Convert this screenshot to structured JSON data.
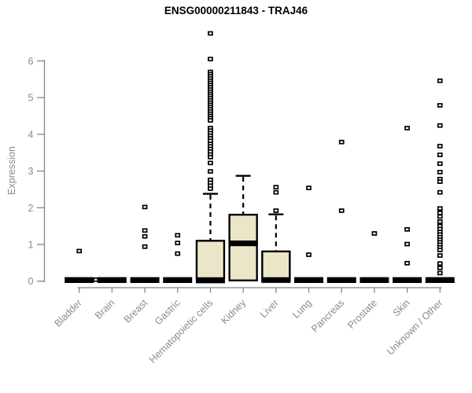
{
  "title": "ENSG00000211843 - TRAJ46",
  "colors": {
    "box_fill": "#ece6c9",
    "box_stroke": "#000000",
    "median": "#000000",
    "outlier_fill": "#ffffff",
    "outlier_stroke": "#000000",
    "axis_line": "#858585",
    "axis_text": "#8a8a8a",
    "title_text": "#000000",
    "background": "#ffffff"
  },
  "chart_data": {
    "type": "boxplot",
    "title": "ENSG00000211843 - TRAJ46",
    "xlabel": "",
    "ylabel": "Expression",
    "ylim": [
      0,
      6
    ],
    "yticks": [
      0,
      1,
      2,
      3,
      4,
      5,
      6
    ],
    "grid": false,
    "legend": "none",
    "categories": [
      "Bladder",
      "Brain",
      "Breast",
      "Gastric",
      "Hematopoietic cells",
      "Kidney",
      "Liver",
      "Lung",
      "Pancreas",
      "Prostate",
      "Skin",
      "Unknown / Other"
    ],
    "boxes": [
      {
        "label": "Bladder",
        "collapsed": true,
        "median": 0,
        "q1": 0,
        "q3": 0.05,
        "whisker_low": 0,
        "whisker_high": 0.05,
        "outliers": [
          0.82
        ],
        "offset_points": [
          {
            "v": 0.04,
            "dx": 21
          }
        ]
      },
      {
        "label": "Brain",
        "collapsed": true,
        "median": 0,
        "q1": 0,
        "q3": 0.05,
        "whisker_low": 0,
        "whisker_high": 0.05,
        "outliers": []
      },
      {
        "label": "Breast",
        "collapsed": true,
        "median": 0,
        "q1": 0,
        "q3": 0.05,
        "whisker_low": 0,
        "whisker_high": 0.05,
        "outliers": [
          2.02,
          1.38,
          1.22,
          0.94
        ]
      },
      {
        "label": "Gastric",
        "collapsed": true,
        "median": 0,
        "q1": 0,
        "q3": 0.05,
        "whisker_low": 0,
        "whisker_high": 0.05,
        "outliers": [
          1.25,
          1.04,
          0.75
        ]
      },
      {
        "label": "Hematopoietic cells",
        "collapsed": false,
        "median": 0.02,
        "q1": 0.08,
        "q3": 1.1,
        "whisker_low": 0.08,
        "whisker_high": 2.38,
        "outliers": [
          6.75,
          6.05,
          5.7,
          5.64,
          5.58,
          5.52,
          5.46,
          5.4,
          5.34,
          5.28,
          5.22,
          5.16,
          5.1,
          5.04,
          4.98,
          4.92,
          4.86,
          4.8,
          4.74,
          4.68,
          4.62,
          4.56,
          4.5,
          4.44,
          4.38,
          4.17,
          4.1,
          4.03,
          3.96,
          3.89,
          3.82,
          3.74,
          3.67,
          3.6,
          3.53,
          3.45,
          3.38,
          3.22,
          2.99,
          2.76,
          2.68,
          2.6,
          2.52
        ]
      },
      {
        "label": "Kidney",
        "collapsed": false,
        "median": 1.03,
        "q1": 0.02,
        "q3": 1.81,
        "whisker_low": 0.02,
        "whisker_high": 2.87,
        "outliers": []
      },
      {
        "label": "Liver",
        "collapsed": false,
        "median": 0.03,
        "q1": 0.02,
        "q3": 0.81,
        "whisker_low": 0.02,
        "whisker_high": 1.82,
        "outliers": [
          2.56,
          2.42,
          1.92
        ]
      },
      {
        "label": "Lung",
        "collapsed": true,
        "median": 0,
        "q1": 0,
        "q3": 0.05,
        "whisker_low": 0,
        "whisker_high": 0.05,
        "outliers": [
          2.54,
          0.72
        ]
      },
      {
        "label": "Pancreas",
        "collapsed": true,
        "median": 0,
        "q1": 0,
        "q3": 0.05,
        "whisker_low": 0,
        "whisker_high": 0.05,
        "outliers": [
          3.79,
          1.92
        ]
      },
      {
        "label": "Prostate",
        "collapsed": true,
        "median": 0,
        "q1": 0,
        "q3": 0.05,
        "whisker_low": 0,
        "whisker_high": 0.05,
        "outliers": [
          1.3
        ]
      },
      {
        "label": "Skin",
        "collapsed": true,
        "median": 0,
        "q1": 0,
        "q3": 0.05,
        "whisker_low": 0,
        "whisker_high": 0.05,
        "outliers": [
          4.17,
          1.41,
          1.01,
          0.49
        ]
      },
      {
        "label": "Unknown / Other",
        "collapsed": true,
        "median": 0,
        "q1": 0,
        "q3": 0.05,
        "whisker_low": 0,
        "whisker_high": 0.05,
        "outliers": [
          5.46,
          4.79,
          4.24,
          3.68,
          3.44,
          3.2,
          2.97,
          2.78,
          2.71,
          2.42,
          1.98,
          1.86,
          1.76,
          1.62,
          1.5,
          1.42,
          1.34,
          1.27,
          1.2,
          1.13,
          1.06,
          0.99,
          0.92,
          0.85,
          0.7,
          0.48,
          0.36,
          0.22
        ]
      }
    ]
  }
}
